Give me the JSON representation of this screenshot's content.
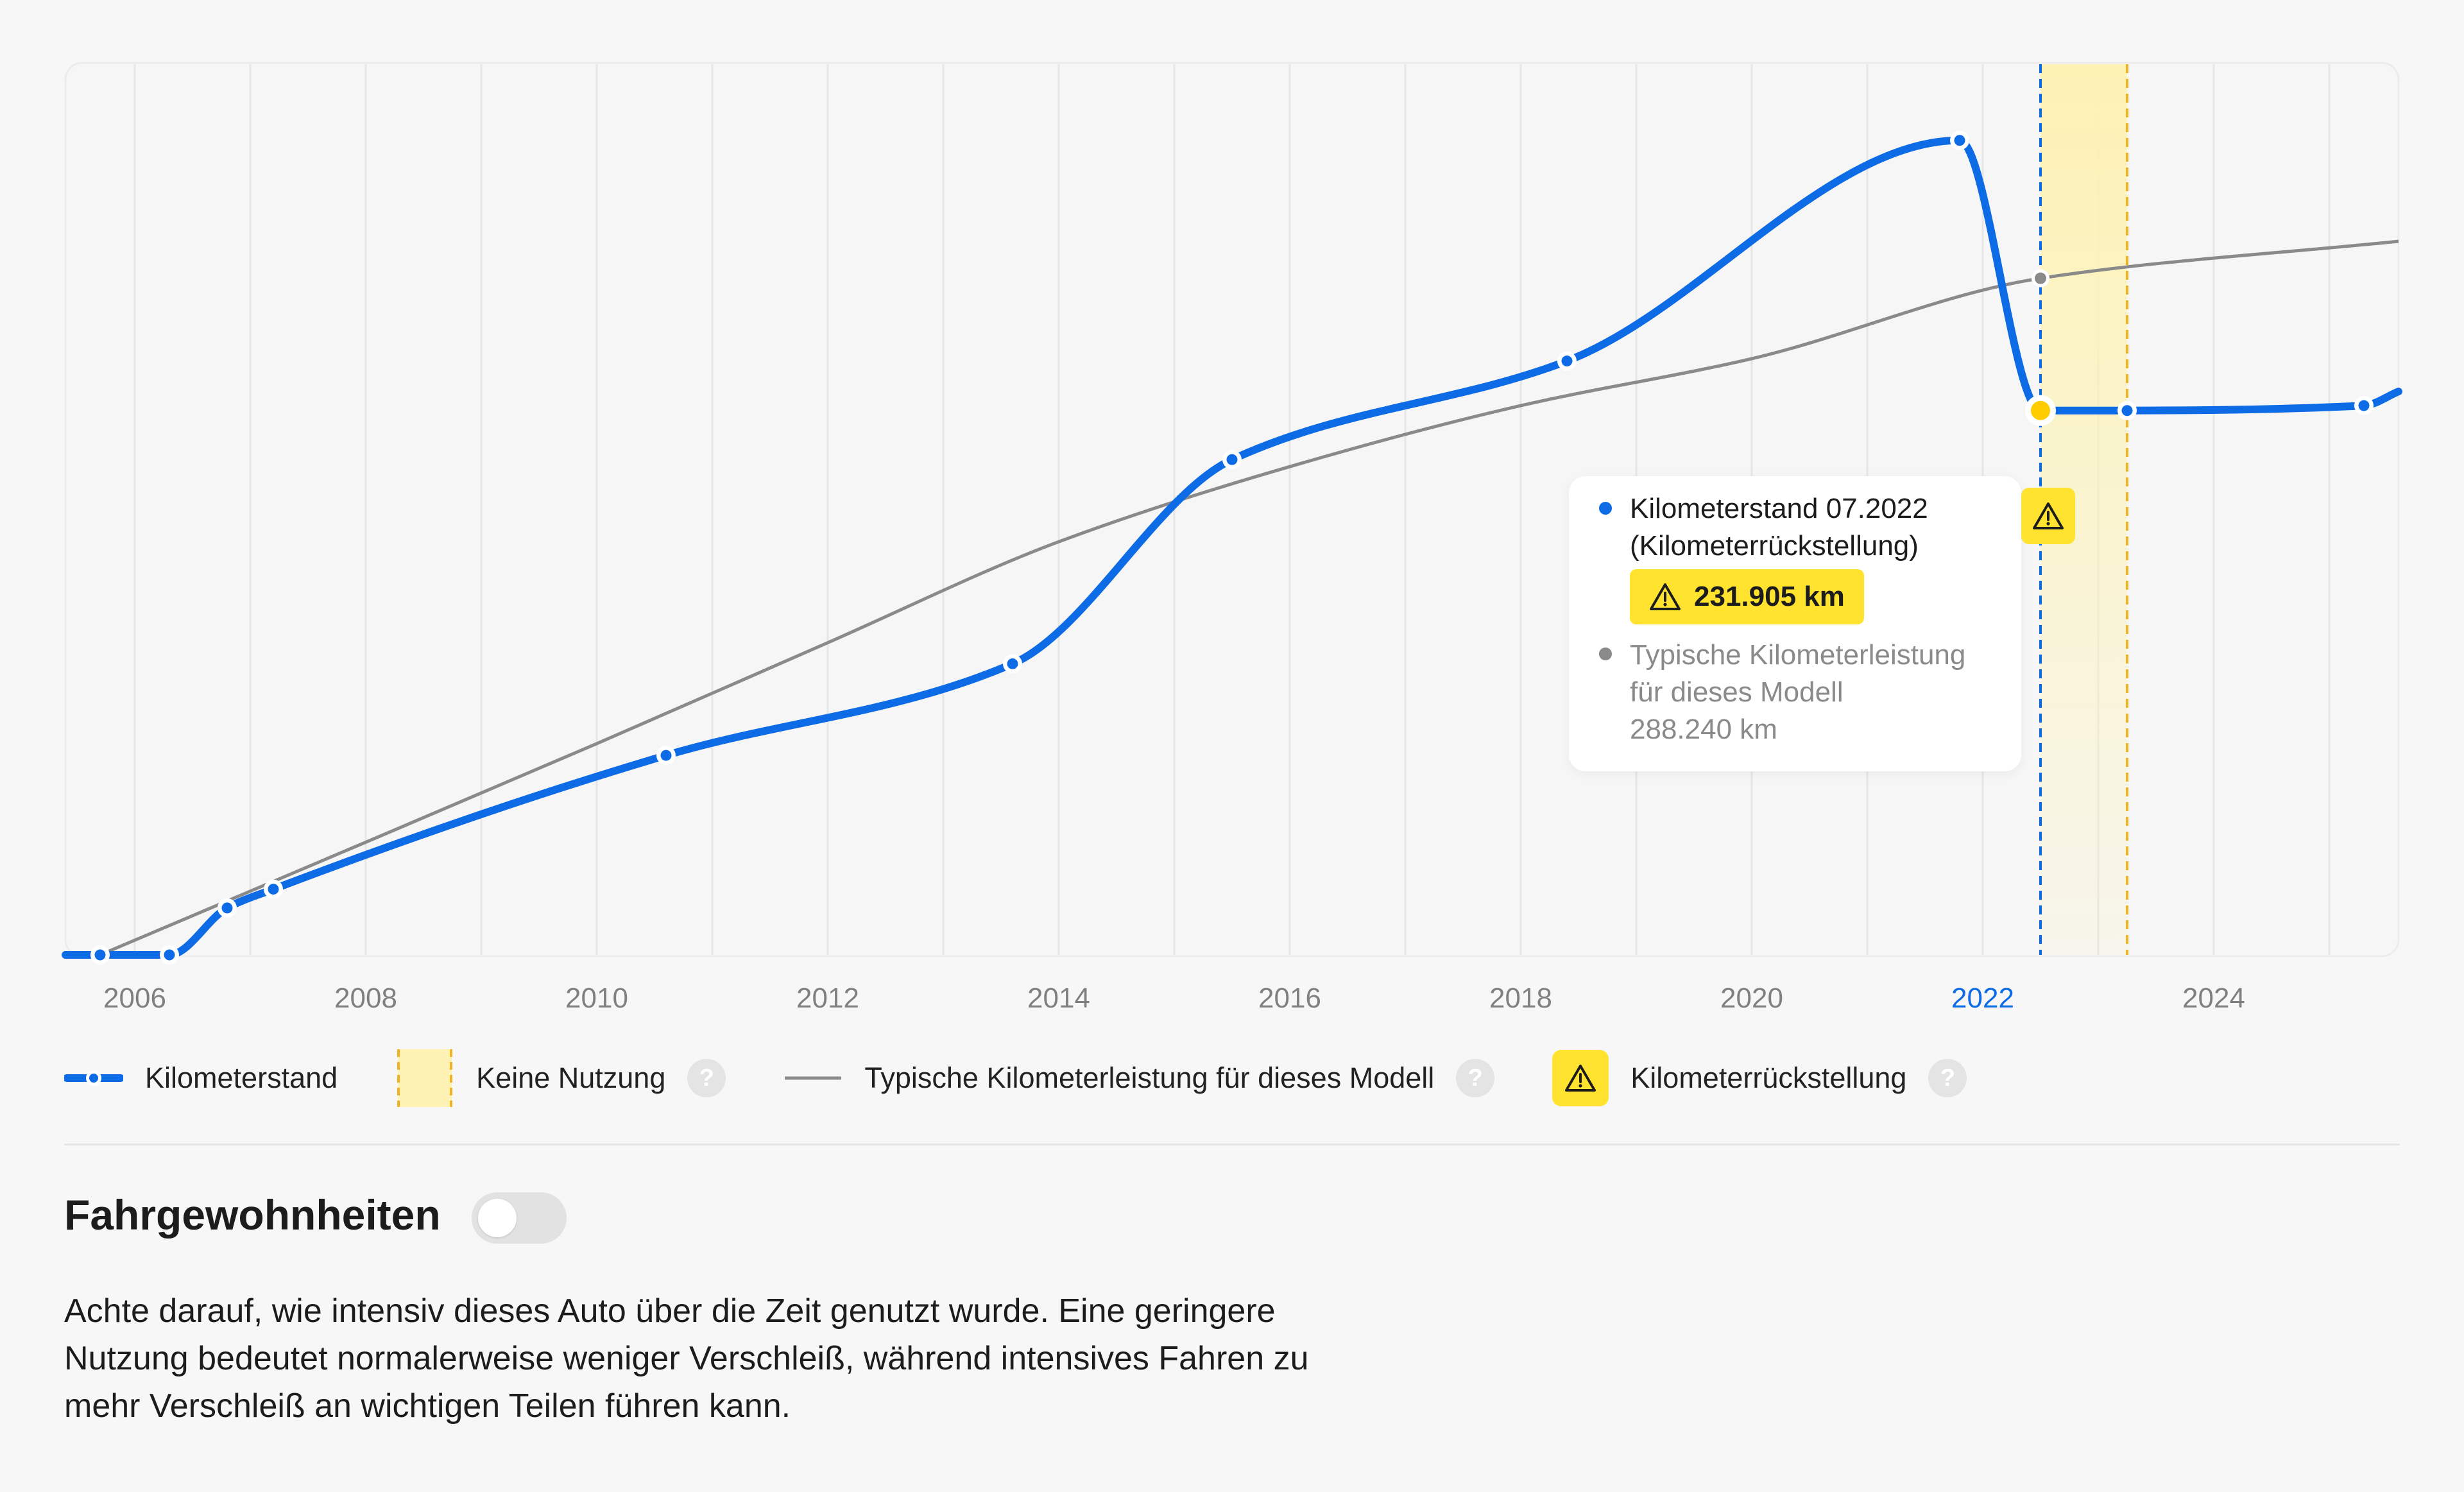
{
  "chart_data": {
    "type": "line",
    "x_unit": "year",
    "xlim": [
      2005.4,
      2025.6
    ],
    "ylim": [
      0,
      380000
    ],
    "x_ticks": [
      "2006",
      "2008",
      "2010",
      "2012",
      "2014",
      "2016",
      "2018",
      "2020",
      "2022",
      "2024"
    ],
    "highlighted_tick": "2022",
    "series": [
      {
        "name": "Kilometerstand",
        "color": "#0d6be6",
        "style": "smooth-line-with-points",
        "points": [
          [
            2005.7,
            0
          ],
          [
            2006.3,
            0
          ],
          [
            2006.8,
            20000
          ],
          [
            2007.2,
            28000
          ],
          [
            2010.6,
            85000
          ],
          [
            2013.6,
            124000
          ],
          [
            2015.5,
            211000
          ],
          [
            2018.4,
            253000
          ],
          [
            2021.8,
            347000
          ],
          [
            2022.5,
            231905
          ],
          [
            2023.25,
            231905
          ],
          [
            2025.3,
            234000
          ]
        ],
        "tail": [
          2025.6,
          240000
        ]
      },
      {
        "name": "Typische Kilometerleistung für dieses Modell",
        "color": "#8a8a8a",
        "style": "line",
        "points": [
          [
            2005.7,
            0
          ],
          [
            2008,
            48000
          ],
          [
            2010,
            90000
          ],
          [
            2012,
            133000
          ],
          [
            2014,
            176000
          ],
          [
            2016,
            208000
          ],
          [
            2018,
            234000
          ],
          [
            2020,
            254000
          ],
          [
            2022.5,
            288240
          ],
          [
            2025.6,
            304000
          ]
        ]
      }
    ],
    "highlight_point": {
      "x": 2022.5,
      "y": 231905,
      "color": "#ffcc00"
    },
    "reference_point": {
      "x": 2022.5,
      "y": 288240
    },
    "no_use_band": {
      "from": 2022.5,
      "to": 2023.25,
      "color": "#fdf2b4",
      "line_color": "#f0b323"
    },
    "cursor_line": {
      "x": 2022.5,
      "color": "#0d6be6"
    }
  },
  "tooltip": {
    "title_line1": "Kilometerstand 07.2022",
    "title_line2": "(Kilometerrückstellung)",
    "value": "231.905 km",
    "typical_line1": "Typische Kilometerleistung",
    "typical_line2": "für dieses Modell",
    "typical_value": "288.240 km",
    "mileage_dot_color": "#0d6be6",
    "typical_dot_color": "#8a8a8a"
  },
  "legend": {
    "mileage": "Kilometerstand",
    "no_use": "Keine Nutzung",
    "typical": "Typische Kilometerleistung für dieses Modell",
    "rollback": "Kilometerrückstellung",
    "help_symbol": "?"
  },
  "section": {
    "title": "Fahrgewohnheiten",
    "toggle_on": false,
    "description": "Achte darauf, wie intensiv dieses Auto über die Zeit genutzt wurde. Eine geringere Nutzung bedeutet normalerweise weniger Verschleiß, während intensives Fahren zu mehr Verschleiß an wichtigen Teilen führen kann."
  },
  "colors": {
    "accent_blue": "#0d6be6",
    "warning_yellow": "#ffe32e",
    "typical_gray": "#8a8a8a"
  }
}
